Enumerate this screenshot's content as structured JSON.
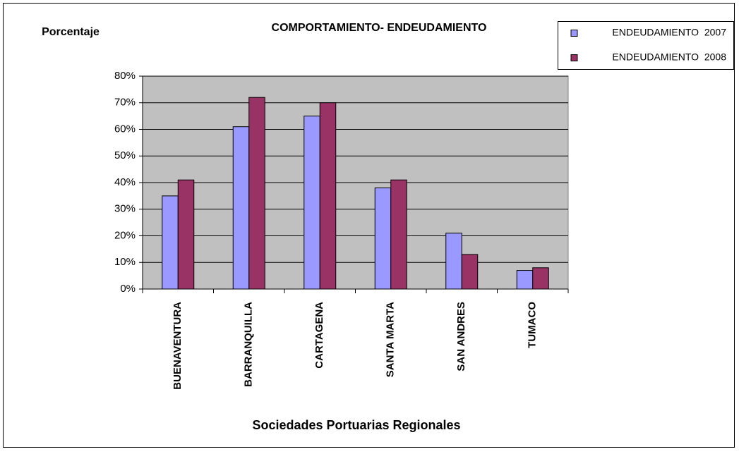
{
  "chart_data": {
    "type": "bar",
    "title": "COMPORTAMIENTO- ENDEUDAMIENTO",
    "y_label": "Porcentaje",
    "x_label": "Sociedades Portuarias Regionales",
    "categories": [
      "BUENAVENTURA",
      "BARRANQUILLA",
      "CARTAGENA",
      "SANTA MARTA",
      "SAN ANDRES",
      "TUMACO"
    ],
    "series": [
      {
        "name": "ENDEUDAMIENTO  2007",
        "color": "#9999ff",
        "values": [
          35,
          61,
          65,
          38,
          21,
          7
        ]
      },
      {
        "name": "ENDEUDAMIENTO  2008",
        "color": "#993366",
        "values": [
          41,
          72,
          70,
          41,
          13,
          8
        ]
      }
    ],
    "ylim": [
      0,
      80
    ],
    "yticks": [
      {
        "value": 0,
        "label": "0%"
      },
      {
        "value": 10,
        "label": "10%"
      },
      {
        "value": 20,
        "label": "20%"
      },
      {
        "value": 30,
        "label": "30%"
      },
      {
        "value": 40,
        "label": "40%"
      },
      {
        "value": 50,
        "label": "50%"
      },
      {
        "value": 60,
        "label": "60%"
      },
      {
        "value": 70,
        "label": "70%"
      },
      {
        "value": 80,
        "label": "80%"
      }
    ],
    "grid": true,
    "legend": "top-right"
  }
}
